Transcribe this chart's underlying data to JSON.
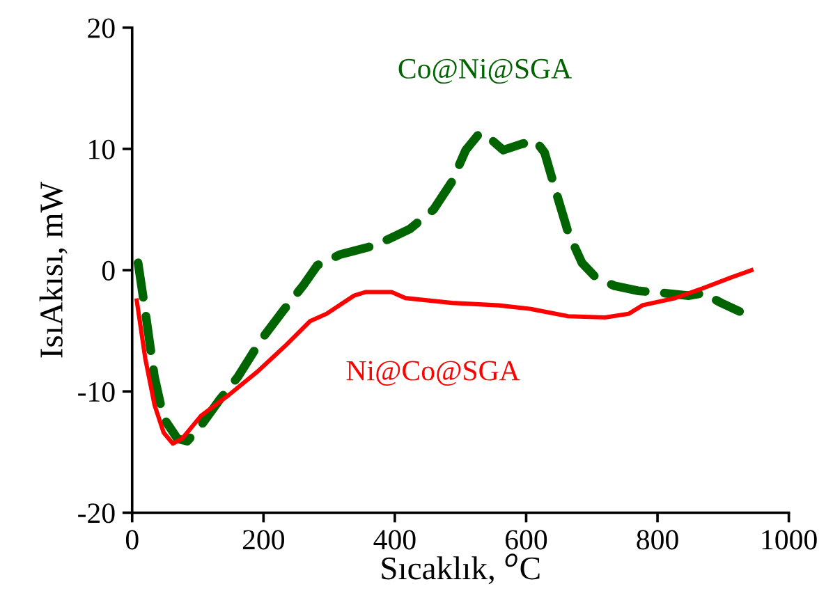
{
  "chart_data": {
    "type": "line",
    "xlabel": "Sıcaklık, $^{o}$C",
    "ylabel": "IsıAkısı, mW",
    "xlim": [
      0,
      1000
    ],
    "xticks": [
      0,
      200,
      400,
      600,
      800,
      1000
    ],
    "ylim": [
      -20,
      20
    ],
    "yticks": [
      -20,
      -10,
      0,
      10,
      20
    ],
    "grid": false,
    "legend": false,
    "marker": "none",
    "series": [
      {
        "name": "Co@Ni@SGA",
        "color": "#006400",
        "line_style": "dashed",
        "x": [
          9,
          20,
          34,
          48,
          69,
          84,
          105,
          133,
          161,
          197,
          232,
          260,
          282,
          317,
          360,
          388,
          423,
          459,
          487,
          508,
          529,
          544,
          565,
          593,
          614,
          628,
          643,
          664,
          685,
          706,
          735,
          770,
          812,
          848,
          869,
          897,
          925
        ],
        "values": [
          0.6,
          -3.4,
          -8.8,
          -12.2,
          -13.9,
          -14.1,
          -12.8,
          -10.7,
          -8.8,
          -5.7,
          -3.2,
          -1.3,
          0.4,
          1.3,
          1.9,
          2.5,
          3.4,
          5.0,
          7.3,
          9.9,
          11.3,
          10.9,
          9.9,
          10.4,
          10.7,
          9.7,
          6.9,
          3.1,
          0.6,
          -0.6,
          -1.3,
          -1.7,
          -1.9,
          -2.1,
          -1.9,
          -2.7,
          -3.4
        ]
      },
      {
        "name": "Ni@Co@SGA",
        "color": "#ff0000",
        "line_style": "solid",
        "x": [
          7,
          20,
          34,
          48,
          62,
          76,
          105,
          147,
          190,
          232,
          271,
          296,
          338,
          356,
          395,
          416,
          487,
          558,
          607,
          664,
          720,
          756,
          777,
          827,
          869,
          912,
          943
        ],
        "values": [
          -2.5,
          -7.3,
          -11.1,
          -13.4,
          -14.3,
          -13.9,
          -12.0,
          -10.3,
          -8.4,
          -6.3,
          -4.2,
          -3.6,
          -2.1,
          -1.8,
          -1.8,
          -2.3,
          -2.7,
          -2.9,
          -3.2,
          -3.8,
          -3.9,
          -3.6,
          -2.9,
          -2.3,
          -1.5,
          -0.6,
          0.0
        ]
      }
    ]
  }
}
